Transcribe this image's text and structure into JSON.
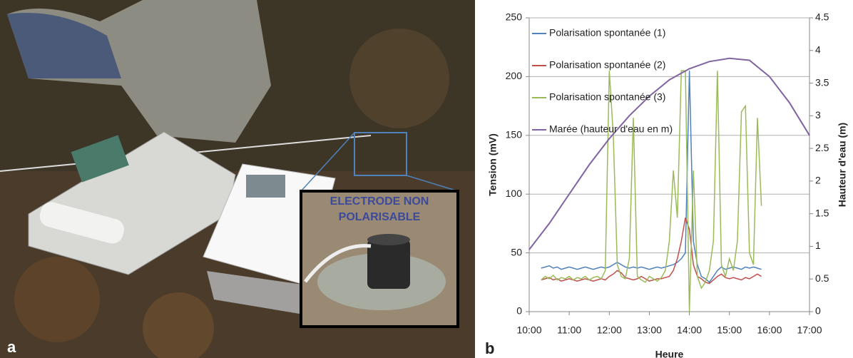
{
  "panel_labels": [
    "a",
    "b"
  ],
  "photo_inset_label": "ELECTRODE NON POLARISABLE",
  "chart_data": {
    "type": "line",
    "x_label": "Heure",
    "y_label": "Tension (mV)",
    "y2_label": "Hauteur d'eau (m)",
    "xlim": [
      10,
      17
    ],
    "xticks": [
      {
        "value": 10,
        "label": "10:00"
      },
      {
        "value": 11,
        "label": "11:00"
      },
      {
        "value": 12,
        "label": "12:00"
      },
      {
        "value": 13,
        "label": "13:00"
      },
      {
        "value": 14,
        "label": "14:00"
      },
      {
        "value": 15,
        "label": "15:00"
      },
      {
        "value": 16,
        "label": "16:00"
      },
      {
        "value": 17,
        "label": "17:00"
      }
    ],
    "ylim": [
      0,
      250
    ],
    "yticks": [
      0,
      50,
      100,
      150,
      200,
      250
    ],
    "y2lim": [
      0,
      4.5
    ],
    "y2ticks": [
      0,
      0.5,
      1,
      1.5,
      2,
      2.5,
      3,
      3.5,
      4,
      4.5
    ],
    "grid": true,
    "legend": "upper-left",
    "x": [
      10.3,
      10.4,
      10.5,
      10.6,
      10.7,
      10.8,
      10.9,
      11.0,
      11.1,
      11.2,
      11.3,
      11.4,
      11.5,
      11.6,
      11.7,
      11.8,
      11.9,
      12.0,
      12.1,
      12.2,
      12.3,
      12.4,
      12.5,
      12.6,
      12.7,
      12.8,
      12.9,
      13.0,
      13.1,
      13.2,
      13.3,
      13.4,
      13.5,
      13.6,
      13.7,
      13.8,
      13.9,
      14.0,
      14.1,
      14.2,
      14.3,
      14.4,
      14.5,
      14.6,
      14.7,
      14.8,
      14.9,
      15.0,
      15.1,
      15.2,
      15.3,
      15.4,
      15.5,
      15.6,
      15.7,
      15.8
    ],
    "series": [
      {
        "name": "Polarisation spontanée (1)",
        "color": "#4f81bd",
        "values": [
          37,
          38,
          39,
          37,
          38,
          36,
          37,
          38,
          37,
          36,
          37,
          38,
          37,
          36,
          37,
          38,
          37,
          38,
          40,
          42,
          40,
          38,
          37,
          38,
          37,
          38,
          37,
          36,
          37,
          38,
          37,
          38,
          39,
          40,
          42,
          45,
          50,
          205,
          60,
          40,
          30,
          28,
          25,
          30,
          35,
          38,
          36,
          37,
          38,
          37,
          36,
          38,
          37,
          38,
          37,
          36
        ]
      },
      {
        "name": "Polarisation spontanée (2)",
        "color": "#c0504d",
        "values": [
          27,
          28,
          29,
          27,
          28,
          26,
          27,
          28,
          27,
          26,
          27,
          28,
          27,
          26,
          27,
          28,
          27,
          30,
          32,
          35,
          33,
          29,
          28,
          27,
          28,
          30,
          28,
          26,
          27,
          28,
          28,
          29,
          30,
          35,
          45,
          60,
          80,
          70,
          40,
          30,
          28,
          25,
          24,
          27,
          30,
          32,
          29,
          28,
          29,
          28,
          27,
          29,
          28,
          30,
          32,
          30
        ]
      },
      {
        "name": "Polarisation spontanée (3)",
        "color": "#9bbb59",
        "values": [
          27,
          30,
          28,
          31,
          27,
          29,
          28,
          30,
          27,
          29,
          28,
          30,
          27,
          29,
          30,
          28,
          35,
          205,
          150,
          40,
          30,
          28,
          45,
          165,
          30,
          27,
          25,
          30,
          28,
          26,
          29,
          35,
          60,
          120,
          80,
          205,
          205,
          0,
          120,
          30,
          20,
          25,
          35,
          60,
          205,
          40,
          30,
          45,
          35,
          60,
          170,
          175,
          50,
          40,
          165,
          90
        ]
      },
      {
        "name": "Marée (hauteur d'eau en m)",
        "color": "#8064a2",
        "axis": "y2",
        "x": [
          10,
          10.5,
          11,
          11.5,
          12,
          12.5,
          13,
          13.5,
          14,
          14.5,
          15,
          15.5,
          16,
          16.5,
          17
        ],
        "values": [
          0.95,
          1.35,
          1.8,
          2.25,
          2.65,
          3.0,
          3.3,
          3.55,
          3.72,
          3.83,
          3.88,
          3.85,
          3.6,
          3.2,
          2.7
        ]
      }
    ]
  }
}
